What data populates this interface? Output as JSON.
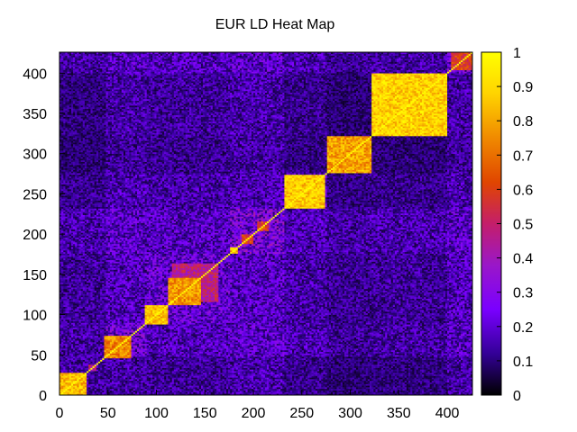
{
  "chart_data": {
    "type": "heatmap",
    "title": "EUR LD Heat Map",
    "xlabel": "",
    "ylabel": "",
    "xlim": [
      0,
      426
    ],
    "ylim": [
      0,
      426
    ],
    "x_ticks": [
      0,
      50,
      100,
      150,
      200,
      250,
      300,
      350,
      400
    ],
    "y_ticks": [
      0,
      50,
      100,
      150,
      200,
      250,
      300,
      350,
      400
    ],
    "colorbar": {
      "min": 0,
      "max": 1,
      "ticks": [
        0,
        0.1,
        0.2,
        0.3,
        0.4,
        0.5,
        0.6,
        0.7,
        0.8,
        0.9,
        1
      ],
      "palette": [
        "#000000",
        "#330096",
        "#7a00ff",
        "#9a17c8",
        "#c41e6a",
        "#e04500",
        "#f08a00",
        "#ffd400",
        "#ffff00"
      ]
    },
    "diagonal_value": 1,
    "blocks": [
      {
        "from": 0,
        "to": 28,
        "value": 0.95
      },
      {
        "from": 30,
        "to": 38,
        "value": 0.6
      },
      {
        "from": 46,
        "to": 74,
        "value": 0.85
      },
      {
        "from": 48,
        "to": 74,
        "value": 0.55
      },
      {
        "from": 88,
        "to": 112,
        "value": 0.95
      },
      {
        "from": 112,
        "to": 146,
        "value": 0.88
      },
      {
        "from": 116,
        "to": 164,
        "value": 0.58
      },
      {
        "from": 176,
        "to": 184,
        "value": 0.95
      },
      {
        "from": 188,
        "to": 200,
        "value": 0.7
      },
      {
        "from": 204,
        "to": 216,
        "value": 0.7
      },
      {
        "from": 232,
        "to": 274,
        "value": 0.98
      },
      {
        "from": 276,
        "to": 322,
        "value": 0.9
      },
      {
        "from": 322,
        "to": 400,
        "value": 0.99
      },
      {
        "from": 404,
        "to": 426,
        "value": 0.7
      }
    ],
    "regions": [
      {
        "from": 0,
        "to": 48,
        "value": 0.12
      },
      {
        "from": 48,
        "to": 90,
        "value": 0.2
      },
      {
        "from": 90,
        "to": 176,
        "value": 0.18
      },
      {
        "from": 176,
        "to": 232,
        "value": 0.22
      },
      {
        "from": 232,
        "to": 276,
        "value": 0.15
      },
      {
        "from": 276,
        "to": 322,
        "value": 0.1
      },
      {
        "from": 322,
        "to": 400,
        "value": 0.12
      },
      {
        "from": 400,
        "to": 426,
        "value": 0.2
      }
    ],
    "grid": false,
    "legend": "right colorbar"
  }
}
